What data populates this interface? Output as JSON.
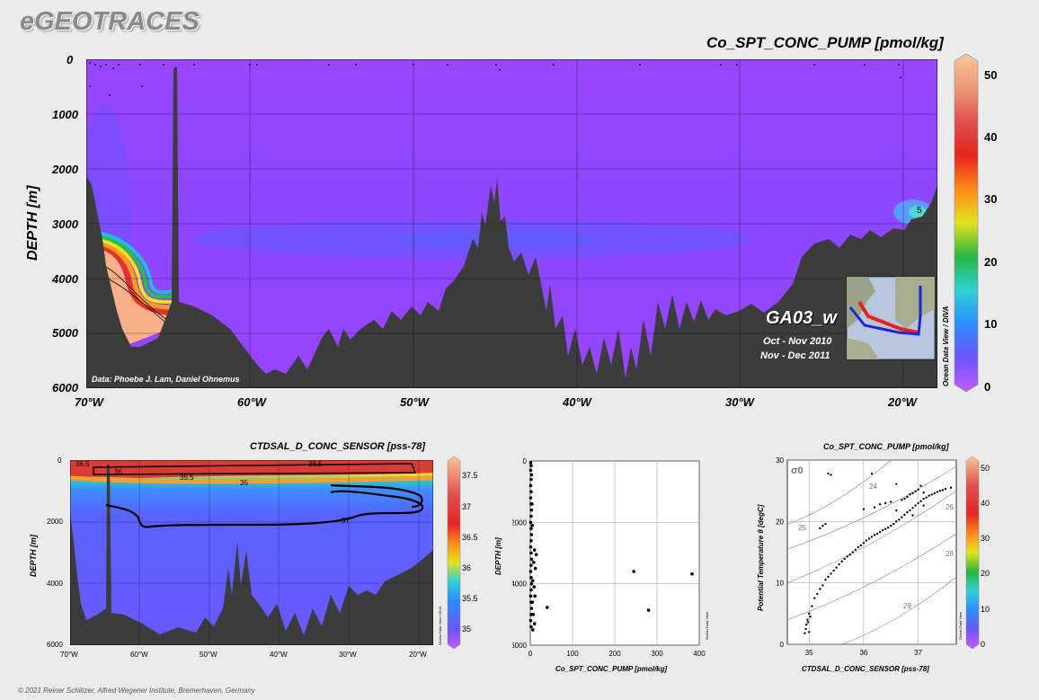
{
  "brand": "eGEOTRACES",
  "footer": "© 2021 Reiner Schlitzer, Alfred Wegener Institute, Bremerhaven, Germany",
  "main": {
    "title": "Co_SPT_CONC_PUMP [pmol/kg]",
    "ylabel": "DEPTH [m]",
    "yticks": [
      "0",
      "1000",
      "2000",
      "3000",
      "4000",
      "5000",
      "6000"
    ],
    "xticks": [
      "70°W",
      "60°W",
      "50°W",
      "40°W",
      "30°W",
      "20°W"
    ],
    "colorbar_ticks": [
      "50",
      "40",
      "30",
      "20",
      "10",
      "0"
    ],
    "contour_label": "5",
    "credit": "Data: Phoebe J. Lam, Daniel Ohnemus",
    "section": "GA03_w",
    "dates": [
      "Oct - Nov 2010",
      "Nov - Dec 2011"
    ],
    "odv": "Ocean Data View / DIVA",
    "colors": {
      "low": "#9f45ff",
      "mid": "#6a55ff",
      "high": "#f9b18a",
      "seafloor": "#3c3c3c"
    }
  },
  "bottom_left": {
    "title": "CTDSAL_D_CONC_SENSOR [pss-78]",
    "ylabel": "DEPTH [m]",
    "yticks": [
      "0",
      "2000",
      "4000",
      "6000"
    ],
    "xticks": [
      "70°W",
      "60°W",
      "50°W",
      "40°W",
      "30°W",
      "20°W"
    ],
    "colorbar_ticks": [
      "37.5",
      "37",
      "36.5",
      "36",
      "35.5",
      "35"
    ],
    "contour_labels": [
      "36.5",
      "36",
      "35.5",
      "35",
      "37",
      "36.5"
    ],
    "odv": "Ocean Data View / DIVA"
  },
  "bottom_mid": {
    "xlabel": "Co_SPT_CONC_PUMP [pmol/kg]",
    "ylabel": "DEPTH [m]",
    "odv": "Ocean Data View"
  },
  "bottom_right": {
    "title": "Co_SPT_CONC_PUMP [pmol/kg]",
    "xlabel": "CTDSAL_D_CONC_SENSOR [pss-78]",
    "ylabel": "Potential Temperature θ [degC]",
    "sigma_label": "σ0",
    "density_labels": [
      "24",
      "26",
      "28",
      "29",
      "25"
    ],
    "colorbar_ticks": [
      "50",
      "40",
      "30",
      "20",
      "10",
      "0"
    ],
    "odv": "Ocean Data View"
  },
  "chart_data": [
    {
      "type": "heatmap",
      "title": "Co_SPT_CONC_PUMP [pmol/kg]",
      "xlabel": "",
      "ylabel": "DEPTH [m]",
      "xlim": [
        -70,
        -17
      ],
      "ylim": [
        6000,
        0
      ],
      "colorbar_range": [
        0,
        50
      ],
      "grid": true
    },
    {
      "type": "heatmap",
      "title": "CTDSAL_D_CONC_SENSOR [pss-78]",
      "xlabel": "",
      "ylabel": "DEPTH [m]",
      "xlim": [
        -70,
        -17
      ],
      "ylim": [
        6000,
        0
      ],
      "colorbar_range": [
        34.8,
        37.7
      ],
      "contours": [
        35,
        35.5,
        36,
        36.5,
        37
      ],
      "grid": true
    },
    {
      "type": "scatter",
      "title": "",
      "xlabel": "Co_SPT_CONC_PUMP [pmol/kg]",
      "ylabel": "DEPTH [m]",
      "xlim": [
        0,
        400
      ],
      "ylim": [
        6000,
        0
      ],
      "xticks": [
        0,
        100,
        200,
        300,
        400
      ],
      "yticks": [
        0,
        2000,
        4000,
        6000
      ],
      "points": [
        [
          1,
          50
        ],
        [
          2,
          150
        ],
        [
          1,
          300
        ],
        [
          3,
          450
        ],
        [
          2,
          600
        ],
        [
          1,
          800
        ],
        [
          2,
          1000
        ],
        [
          1,
          1200
        ],
        [
          2,
          1400
        ],
        [
          3,
          1600
        ],
        [
          2,
          1800
        ],
        [
          1,
          2000
        ],
        [
          2,
          2200
        ],
        [
          3,
          2400
        ],
        [
          2,
          2600
        ],
        [
          1,
          2800
        ],
        [
          2,
          3000
        ],
        [
          3,
          3200
        ],
        [
          2,
          3400
        ],
        [
          1,
          3600
        ],
        [
          2,
          3800
        ],
        [
          3,
          4000
        ],
        [
          2,
          4200
        ],
        [
          1,
          4400
        ],
        [
          2,
          4600
        ],
        [
          3,
          4800
        ],
        [
          2,
          5000
        ],
        [
          1,
          5200
        ],
        [
          2,
          5400
        ],
        [
          4,
          1400
        ],
        [
          5,
          2100
        ],
        [
          10,
          2900
        ],
        [
          14,
          3050
        ],
        [
          8,
          3300
        ],
        [
          12,
          3500
        ],
        [
          6,
          3900
        ],
        [
          9,
          4100
        ],
        [
          11,
          4400
        ],
        [
          5,
          4600
        ],
        [
          7,
          5000
        ],
        [
          10,
          5300
        ],
        [
          6,
          5500
        ],
        [
          40,
          4770
        ],
        [
          245,
          3600
        ],
        [
          280,
          4860
        ],
        [
          383,
          3680
        ]
      ],
      "grid": true
    },
    {
      "type": "scatter",
      "title": "Co_SPT_CONC_PUMP [pmol/kg]",
      "xlabel": "CTDSAL_D_CONC_SENSOR [pss-78]",
      "ylabel": "Potential Temperature θ [degC]",
      "xlim": [
        34.6,
        37.7
      ],
      "ylim": [
        0,
        30
      ],
      "xticks": [
        35,
        36,
        37
      ],
      "yticks": [
        0,
        10,
        20,
        30
      ],
      "colorbar_range": [
        0,
        50
      ],
      "points": [
        [
          34.92,
          1.8
        ],
        [
          34.94,
          2.5
        ],
        [
          34.95,
          3.2
        ],
        [
          34.97,
          4.0
        ],
        [
          35.0,
          5.0
        ],
        [
          35.05,
          6.2
        ],
        [
          35.1,
          7.5
        ],
        [
          35.2,
          9.0
        ],
        [
          35.3,
          10.5
        ],
        [
          35.4,
          11.5
        ],
        [
          35.5,
          12.5
        ],
        [
          35.6,
          13.5
        ],
        [
          35.7,
          14.3
        ],
        [
          35.8,
          15.0
        ],
        [
          35.9,
          15.8
        ],
        [
          36.0,
          16.5
        ],
        [
          36.1,
          17.2
        ],
        [
          36.2,
          17.8
        ],
        [
          36.3,
          18.3
        ],
        [
          36.4,
          18.8
        ],
        [
          36.5,
          19.3
        ],
        [
          36.6,
          20.0
        ],
        [
          36.7,
          20.7
        ],
        [
          36.8,
          21.5
        ],
        [
          36.9,
          22.2
        ],
        [
          37.0,
          23.0
        ],
        [
          37.1,
          23.7
        ],
        [
          37.2,
          24.2
        ],
        [
          37.3,
          24.6
        ],
        [
          37.4,
          25.0
        ],
        [
          37.5,
          25.3
        ],
        [
          37.6,
          25.5
        ],
        [
          36.2,
          22.3
        ],
        [
          36.3,
          22.8
        ],
        [
          36.4,
          23.0
        ],
        [
          36.5,
          23.2
        ],
        [
          36.7,
          23.5
        ],
        [
          36.8,
          24.0
        ],
        [
          36.9,
          24.6
        ],
        [
          37.0,
          25.2
        ],
        [
          36.6,
          21.8
        ],
        [
          36.9,
          21.0
        ],
        [
          37.1,
          22.6
        ],
        [
          35.0,
          2.0
        ],
        [
          34.98,
          3.6
        ],
        [
          35.02,
          4.5
        ],
        [
          35.15,
          8.2
        ],
        [
          35.25,
          9.6
        ],
        [
          35.35,
          11.0
        ],
        [
          35.45,
          12.0
        ],
        [
          35.55,
          13.0
        ],
        [
          35.65,
          13.9
        ],
        [
          35.75,
          14.6
        ],
        [
          35.85,
          15.4
        ],
        [
          35.95,
          16.1
        ],
        [
          36.05,
          16.9
        ],
        [
          36.15,
          17.5
        ],
        [
          36.25,
          18.0
        ],
        [
          36.35,
          18.6
        ],
        [
          36.45,
          19.0
        ],
        [
          36.55,
          19.6
        ],
        [
          36.65,
          20.3
        ],
        [
          36.75,
          21.1
        ],
        [
          36.85,
          21.8
        ],
        [
          36.95,
          22.6
        ],
        [
          37.05,
          23.3
        ],
        [
          37.15,
          23.9
        ],
        [
          37.25,
          24.4
        ],
        [
          37.35,
          24.8
        ],
        [
          37.45,
          25.1
        ],
        [
          36.85,
          24.4
        ],
        [
          36.95,
          24.9
        ],
        [
          37.1,
          24.7
        ],
        [
          36.75,
          23.7
        ],
        [
          35.3,
          19.6
        ],
        [
          35.25,
          19.3
        ],
        [
          35.2,
          18.9
        ],
        [
          36.15,
          27.8
        ],
        [
          35.35,
          27.8
        ],
        [
          35.4,
          27.6
        ],
        [
          36.6,
          26.1
        ],
        [
          37.05,
          25.8
        ],
        [
          36.0,
          22.0
        ]
      ],
      "density_contours": [
        24,
        25,
        26,
        28,
        29
      ],
      "grid": true
    }
  ]
}
